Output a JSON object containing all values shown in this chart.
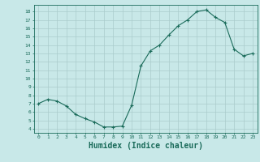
{
  "x": [
    0,
    1,
    2,
    3,
    4,
    5,
    6,
    7,
    8,
    9,
    10,
    11,
    12,
    13,
    14,
    15,
    16,
    17,
    18,
    19,
    20,
    21,
    22,
    23
  ],
  "y": [
    7.0,
    7.5,
    7.3,
    6.7,
    5.7,
    5.2,
    4.8,
    4.2,
    4.2,
    4.3,
    6.8,
    11.5,
    13.3,
    14.0,
    15.2,
    16.3,
    17.0,
    18.0,
    18.2,
    17.3,
    16.7,
    13.5,
    12.7,
    13.0
  ],
  "line_color": "#1a6b5a",
  "marker": "+",
  "background_color": "#c8e8e8",
  "grid_color": "#aacccc",
  "xlabel": "Humidex (Indice chaleur)",
  "xlabel_fontsize": 7,
  "yticks": [
    4,
    5,
    6,
    7,
    8,
    9,
    10,
    11,
    12,
    13,
    14,
    15,
    16,
    17,
    18
  ],
  "xticks": [
    0,
    1,
    2,
    3,
    4,
    5,
    6,
    7,
    8,
    9,
    10,
    11,
    12,
    13,
    14,
    15,
    16,
    17,
    18,
    19,
    20,
    21,
    22,
    23
  ],
  "ylim": [
    3.5,
    18.8
  ],
  "xlim": [
    -0.5,
    23.5
  ]
}
